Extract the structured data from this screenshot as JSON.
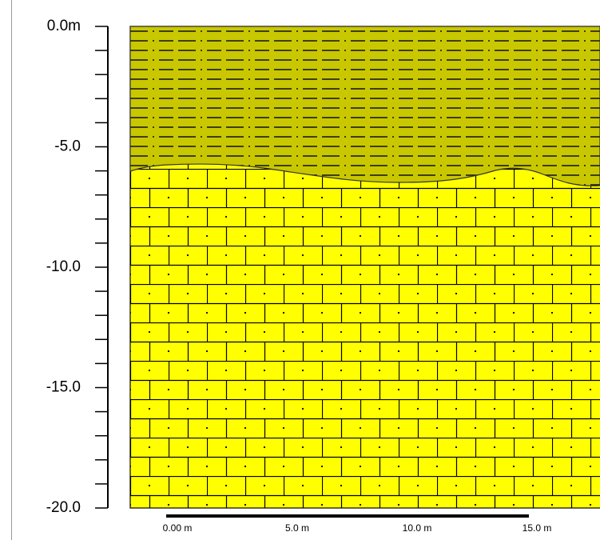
{
  "depth_axis": {
    "labels": [
      "0.0m",
      "-5.0",
      "-10.0",
      "-15.0",
      "-20.0"
    ]
  },
  "scale_bar": {
    "labels": [
      "0.00 m",
      "5.0 m",
      "10.0 m",
      "15.0 m"
    ]
  }
}
